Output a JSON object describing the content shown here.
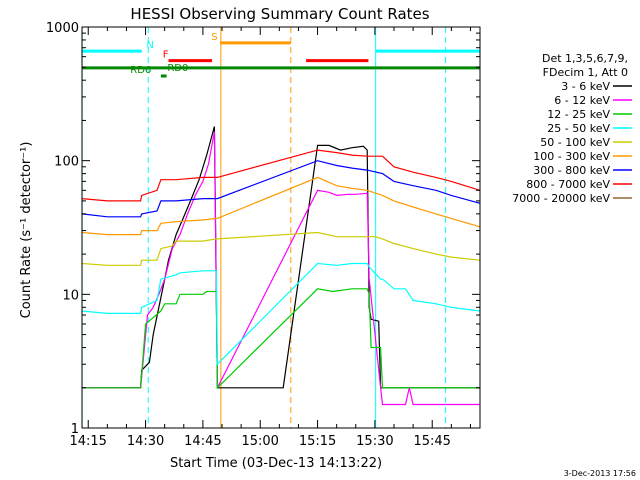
{
  "chart_data": {
    "type": "line",
    "title": "HESSI Observing Summary Count Rates",
    "xlabel": "Start Time (03-Dec-13 14:13:22)",
    "ylabel": "Count Rate (s⁻¹ detector⁻¹)",
    "x_ticks": [
      "14:15",
      "14:30",
      "14:45",
      "15:00",
      "15:15",
      "15:30",
      "15:45"
    ],
    "x_tick_minutes": [
      15,
      30,
      45,
      60,
      75,
      90,
      105
    ],
    "xlim_minutes_after_14h": [
      13.37,
      117.5
    ],
    "yscale": "log",
    "ylim": [
      1,
      1000
    ],
    "y_ticks": [
      1,
      10,
      100,
      1000
    ],
    "y_tick_labels": [
      "1",
      "10",
      "100",
      "1000"
    ],
    "legend": {
      "header": [
        "Det 1,3,5,6,7,9,",
        "FDecim 1, Att 0"
      ],
      "position": "right"
    },
    "series": [
      {
        "name": "3 - 6 keV",
        "color": "#000000",
        "points": [
          [
            13.4,
            2
          ],
          [
            28.7,
            2
          ],
          [
            29,
            2.7
          ],
          [
            31,
            3.1
          ],
          [
            32,
            5
          ],
          [
            35,
            13
          ],
          [
            36,
            18
          ],
          [
            38,
            28
          ],
          [
            40,
            38
          ],
          [
            42,
            52
          ],
          [
            44,
            72
          ],
          [
            46,
            110
          ],
          [
            48,
            180
          ],
          [
            48.8,
            2
          ],
          [
            66,
            2
          ],
          [
            75,
            130
          ],
          [
            78,
            130
          ],
          [
            81,
            120
          ],
          [
            84,
            125
          ],
          [
            87,
            128
          ],
          [
            88,
            120
          ],
          [
            88.5,
            8
          ],
          [
            89,
            6.5
          ],
          [
            91,
            6.3
          ],
          [
            91.5,
            2
          ],
          [
            117.5,
            2
          ]
        ]
      },
      {
        "name": "6 - 12 keV",
        "color": "#ff00ff",
        "points": [
          [
            13.4,
            2
          ],
          [
            28.7,
            2
          ],
          [
            30.5,
            7
          ],
          [
            32,
            8
          ],
          [
            33.5,
            10
          ],
          [
            35,
            13
          ],
          [
            37,
            22
          ],
          [
            39,
            28
          ],
          [
            41,
            40
          ],
          [
            43,
            55
          ],
          [
            45,
            70
          ],
          [
            46.5,
            95
          ],
          [
            48,
            165
          ],
          [
            48.8,
            2
          ],
          [
            75,
            60
          ],
          [
            78,
            58
          ],
          [
            80,
            55
          ],
          [
            83,
            56
          ],
          [
            85,
            56
          ],
          [
            88,
            57
          ],
          [
            88.5,
            13
          ],
          [
            91.5,
            2
          ],
          [
            92,
            1.5
          ],
          [
            98,
            1.5
          ],
          [
            99,
            2
          ],
          [
            100,
            1.5
          ],
          [
            117.5,
            1.5
          ]
        ]
      },
      {
        "name": "12 - 25 keV",
        "color": "#00cc00",
        "points": [
          [
            13.4,
            2
          ],
          [
            28.7,
            2
          ],
          [
            30,
            6
          ],
          [
            34,
            7.5
          ],
          [
            35,
            8.5
          ],
          [
            38,
            8.5
          ],
          [
            39,
            10
          ],
          [
            45,
            10
          ],
          [
            46,
            10.5
          ],
          [
            48.5,
            10.5
          ],
          [
            48.8,
            2
          ],
          [
            75,
            11
          ],
          [
            79,
            10.5
          ],
          [
            84,
            11
          ],
          [
            88,
            11
          ],
          [
            88.5,
            10
          ],
          [
            89,
            4
          ],
          [
            91.5,
            4
          ],
          [
            92,
            2
          ],
          [
            117.5,
            2
          ]
        ]
      },
      {
        "name": "25 - 50 keV",
        "color": "#00ffff",
        "points": [
          [
            13.4,
            7.5
          ],
          [
            20,
            7.2
          ],
          [
            28.7,
            7.2
          ],
          [
            29,
            8
          ],
          [
            33,
            9
          ],
          [
            34,
            13
          ],
          [
            38,
            14
          ],
          [
            39,
            14.5
          ],
          [
            45,
            15
          ],
          [
            48.5,
            15
          ],
          [
            48.8,
            3
          ],
          [
            75,
            17
          ],
          [
            80,
            16.5
          ],
          [
            84,
            17
          ],
          [
            88,
            17
          ],
          [
            88.5,
            16
          ],
          [
            91.5,
            13
          ],
          [
            92,
            13
          ],
          [
            95,
            11
          ],
          [
            98,
            11
          ],
          [
            100,
            9
          ],
          [
            106,
            8.5
          ],
          [
            110,
            8
          ],
          [
            117.5,
            7.5
          ]
        ]
      },
      {
        "name": "50 - 100 keV",
        "color": "#cccc00",
        "points": [
          [
            13.4,
            17
          ],
          [
            20,
            16.5
          ],
          [
            28.7,
            16.5
          ],
          [
            29,
            18
          ],
          [
            33,
            18
          ],
          [
            34,
            22
          ],
          [
            37,
            23
          ],
          [
            38,
            25
          ],
          [
            45,
            25
          ],
          [
            48.5,
            26
          ],
          [
            48.8,
            26
          ],
          [
            75,
            29
          ],
          [
            80,
            27
          ],
          [
            84,
            27
          ],
          [
            88,
            27
          ],
          [
            90,
            27
          ],
          [
            92,
            26
          ],
          [
            95,
            24
          ],
          [
            100,
            22
          ],
          [
            106,
            20
          ],
          [
            110,
            19
          ],
          [
            117.5,
            18
          ]
        ]
      },
      {
        "name": "100 - 300 keV",
        "color": "#ff9900",
        "points": [
          [
            13.4,
            29
          ],
          [
            20,
            28
          ],
          [
            28.7,
            28
          ],
          [
            29,
            30
          ],
          [
            33,
            30
          ],
          [
            34,
            34
          ],
          [
            38,
            35
          ],
          [
            45,
            36
          ],
          [
            48.5,
            37
          ],
          [
            48.8,
            37
          ],
          [
            75,
            75
          ],
          [
            80,
            65
          ],
          [
            84,
            62
          ],
          [
            88,
            60
          ],
          [
            92,
            55
          ],
          [
            95,
            50
          ],
          [
            100,
            45
          ],
          [
            106,
            40
          ],
          [
            110,
            37
          ],
          [
            117.5,
            32
          ]
        ]
      },
      {
        "name": "300 - 800 keV",
        "color": "#0000ff",
        "points": [
          [
            13.4,
            40
          ],
          [
            20,
            38
          ],
          [
            28.7,
            38
          ],
          [
            29,
            40
          ],
          [
            33,
            42
          ],
          [
            34,
            50
          ],
          [
            38,
            50
          ],
          [
            45,
            52
          ],
          [
            48.5,
            52
          ],
          [
            48.8,
            52
          ],
          [
            75,
            100
          ],
          [
            80,
            92
          ],
          [
            84,
            88
          ],
          [
            88,
            85
          ],
          [
            92,
            80
          ],
          [
            95,
            70
          ],
          [
            100,
            65
          ],
          [
            106,
            60
          ],
          [
            110,
            55
          ],
          [
            117.5,
            48
          ]
        ]
      },
      {
        "name": "800 - 7000 keV",
        "color": "#ff0000",
        "points": [
          [
            13.4,
            52
          ],
          [
            20,
            50
          ],
          [
            28.7,
            50
          ],
          [
            29,
            55
          ],
          [
            33,
            60
          ],
          [
            34,
            72
          ],
          [
            38,
            72
          ],
          [
            45,
            75
          ],
          [
            48.5,
            75
          ],
          [
            48.8,
            75
          ],
          [
            75,
            120
          ],
          [
            80,
            115
          ],
          [
            84,
            110
          ],
          [
            88,
            108
          ],
          [
            92,
            108
          ],
          [
            95,
            90
          ],
          [
            100,
            82
          ],
          [
            106,
            75
          ],
          [
            110,
            70
          ],
          [
            117.5,
            60
          ]
        ]
      },
      {
        "name": "7000 - 20000 keV",
        "color": "#996633",
        "points": []
      }
    ],
    "flags": [
      {
        "label": "N",
        "color": "#00ffff",
        "y": 660,
        "segments": [
          [
            13.4,
            29
          ],
          [
            90.2,
            117.5
          ]
        ]
      },
      {
        "label": "F",
        "color": "#ff0000",
        "y": 560,
        "segments": [
          [
            36,
            47.4
          ],
          [
            72,
            88.3
          ]
        ]
      },
      {
        "label": "S",
        "color": "#ff9900",
        "y": 760,
        "segments": [
          [
            49.5,
            68
          ]
        ]
      },
      {
        "label": "RD0",
        "color": "#008800",
        "y": 495,
        "segments": [
          [
            13.4,
            117.5
          ]
        ]
      },
      {
        "label": "RD6",
        "color": "#008800",
        "y": 430,
        "segments": [
          [
            34,
            35.5
          ]
        ]
      }
    ],
    "markers": [
      {
        "color": "#00ffff",
        "x": 13.4,
        "style": "solid"
      },
      {
        "color": "#00ffff",
        "x": 30.7,
        "style": "dashed"
      },
      {
        "color": "#ff9900",
        "x": 49.7,
        "style": "solid"
      },
      {
        "color": "#ff9900",
        "x": 68.0,
        "style": "dashed"
      },
      {
        "color": "#00ffff",
        "x": 90.2,
        "style": "solid"
      },
      {
        "color": "#00ffff",
        "x": 108.5,
        "style": "dashed"
      }
    ]
  },
  "footer": {
    "timestamp": "3-Dec-2013 17:56"
  }
}
